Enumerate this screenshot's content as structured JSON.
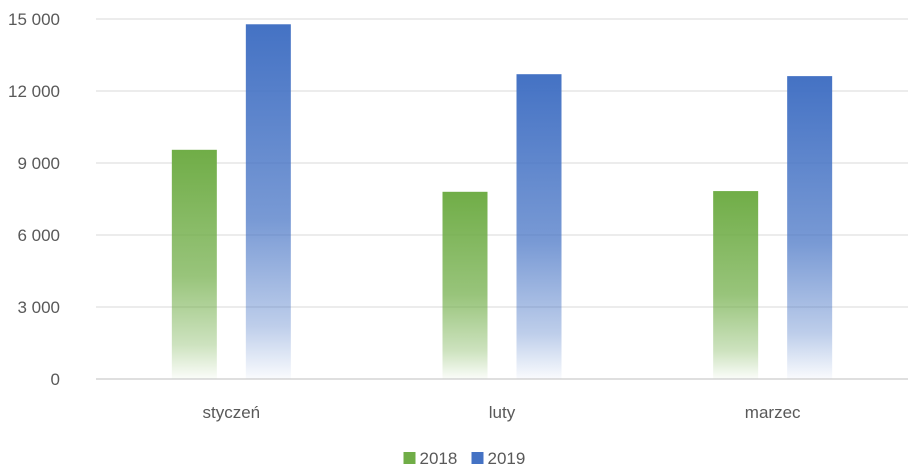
{
  "chart_data": {
    "type": "bar",
    "title": "",
    "xlabel": "",
    "ylabel": "",
    "categories": [
      "styczeń",
      "luty",
      "marzec"
    ],
    "series": [
      {
        "name": "2018",
        "values": [
          9550,
          7800,
          7830
        ],
        "color": "#70ad47"
      },
      {
        "name": "2019",
        "values": [
          14780,
          12700,
          12620
        ],
        "color": "#4472c4"
      }
    ],
    "ylim": [
      0,
      15000
    ],
    "yticks": [
      0,
      3000,
      6000,
      9000,
      12000,
      15000
    ],
    "ytick_labels": [
      "0",
      "3 000",
      "6 000",
      "9 000",
      "12 000",
      "15 000"
    ],
    "grid": true,
    "legend_position": "bottom"
  }
}
